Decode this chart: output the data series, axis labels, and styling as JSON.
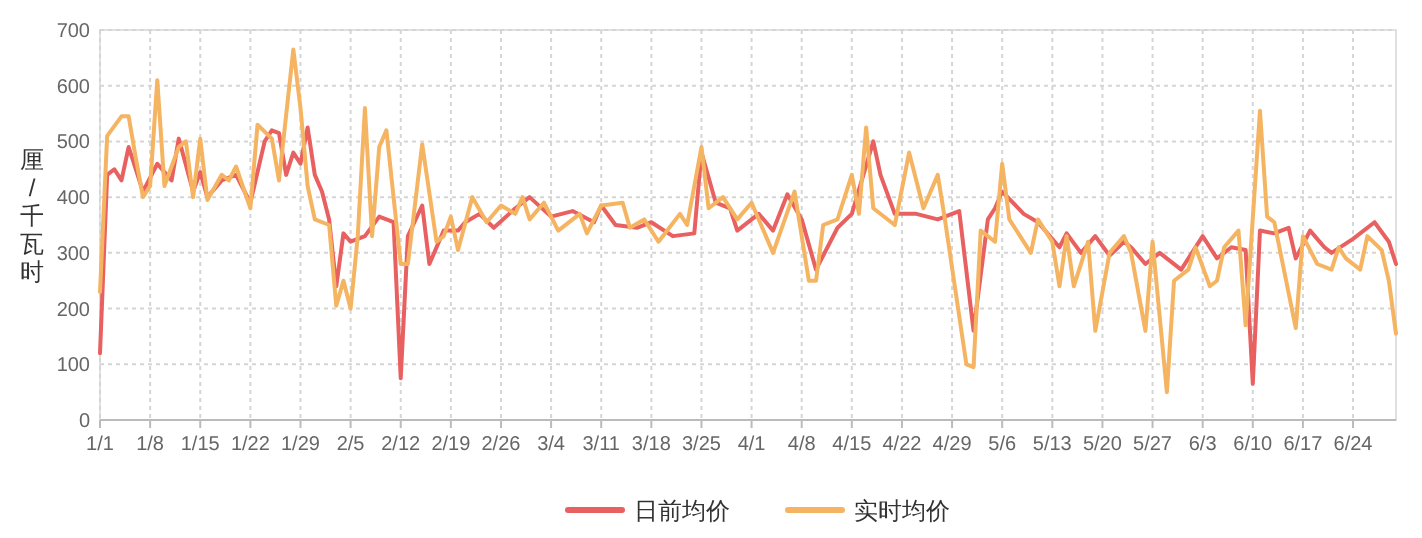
{
  "chart_data": {
    "type": "line",
    "ylabel": "厘/千瓦时",
    "xlim": [
      "--01-01",
      "--06-30"
    ],
    "xticks": [
      {
        "value": "--01-01",
        "label": "1/1"
      },
      {
        "value": "--01-08",
        "label": "1/8"
      },
      {
        "value": "--01-15",
        "label": "1/15"
      },
      {
        "value": "--01-22",
        "label": "1/22"
      },
      {
        "value": "--01-29",
        "label": "1/29"
      },
      {
        "value": "--02-05",
        "label": "2/5"
      },
      {
        "value": "--02-12",
        "label": "2/12"
      },
      {
        "value": "--02-19",
        "label": "2/19"
      },
      {
        "value": "--02-26",
        "label": "2/26"
      },
      {
        "value": "--03-04",
        "label": "3/4"
      },
      {
        "value": "--03-11",
        "label": "3/11"
      },
      {
        "value": "--03-18",
        "label": "3/18"
      },
      {
        "value": "--03-25",
        "label": "3/25"
      },
      {
        "value": "--04-01",
        "label": "4/1"
      },
      {
        "value": "--04-08",
        "label": "4/8"
      },
      {
        "value": "--04-15",
        "label": "4/15"
      },
      {
        "value": "--04-22",
        "label": "4/22"
      },
      {
        "value": "--04-29",
        "label": "4/29"
      },
      {
        "value": "--05-06",
        "label": "5/6"
      },
      {
        "value": "--05-13",
        "label": "5/13"
      },
      {
        "value": "--05-20",
        "label": "5/20"
      },
      {
        "value": "--05-27",
        "label": "5/27"
      },
      {
        "value": "--06-03",
        "label": "6/3"
      },
      {
        "value": "--06-10",
        "label": "6/10"
      },
      {
        "value": "--06-17",
        "label": "6/17"
      },
      {
        "value": "--06-24",
        "label": "6/24"
      }
    ],
    "ylim": [
      0,
      700
    ],
    "yticks": [
      0,
      100,
      200,
      300,
      400,
      500,
      600,
      700
    ],
    "grid": true,
    "legend": "bottom",
    "series": [
      {
        "name": "日前均价",
        "color": "#e8605f",
        "x": [
          "--01-01",
          "--01-02",
          "--01-03",
          "--01-04",
          "--01-05",
          "--01-07",
          "--01-09",
          "--01-11",
          "--01-12",
          "--01-14",
          "--01-15",
          "--01-16",
          "--01-18",
          "--01-20",
          "--01-22",
          "--01-24",
          "--01-25",
          "--01-26",
          "--01-27",
          "--01-28",
          "--01-29",
          "--01-30",
          "--01-31",
          "--02-01",
          "--02-02",
          "--02-03",
          "--02-04",
          "--02-05",
          "--02-07",
          "--02-09",
          "--02-11",
          "--02-12",
          "--02-13",
          "--02-15",
          "--02-16",
          "--02-18",
          "--02-20",
          "--02-21",
          "--02-23",
          "--02-25",
          "--02-28",
          "--03-01",
          "--03-04",
          "--03-07",
          "--03-10",
          "--03-11",
          "--03-13",
          "--03-16",
          "--03-18",
          "--03-21",
          "--03-24",
          "--03-25",
          "--03-27",
          "--03-29",
          "--03-30",
          "--04-02",
          "--04-04",
          "--04-06",
          "--04-08",
          "--04-10",
          "--04-13",
          "--04-15",
          "--04-18",
          "--04-19",
          "--04-21",
          "--04-24",
          "--04-27",
          "--04-30",
          "--05-02",
          "--05-04",
          "--05-05",
          "--05-06",
          "--05-09",
          "--05-11",
          "--05-14",
          "--05-15",
          "--05-17",
          "--05-19",
          "--05-21",
          "--05-23",
          "--05-24",
          "--05-26",
          "--05-28",
          "--05-31",
          "--06-03",
          "--06-05",
          "--06-07",
          "--06-09",
          "--06-10",
          "--06-11",
          "--06-13",
          "--06-15",
          "--06-16",
          "--06-18",
          "--06-20",
          "--06-21",
          "--06-24",
          "--06-27",
          "--06-29",
          "--06-30"
        ],
        "values": [
          120,
          440,
          450,
          430,
          490,
          410,
          460,
          430,
          505,
          410,
          445,
          400,
          430,
          440,
          390,
          500,
          520,
          515,
          440,
          480,
          460,
          525,
          440,
          410,
          360,
          240,
          335,
          320,
          330,
          365,
          355,
          75,
          330,
          385,
          280,
          340,
          340,
          355,
          370,
          345,
          380,
          400,
          365,
          375,
          355,
          385,
          350,
          345,
          355,
          330,
          335,
          480,
          390,
          380,
          340,
          370,
          340,
          405,
          360,
          270,
          345,
          370,
          500,
          440,
          370,
          370,
          360,
          375,
          160,
          360,
          380,
          410,
          370,
          355,
          310,
          335,
          300,
          330,
          295,
          320,
          310,
          280,
          300,
          270,
          330,
          290,
          310,
          305,
          65,
          340,
          335,
          345,
          290,
          340,
          310,
          300,
          325,
          355,
          320,
          280
        ]
      },
      {
        "name": "实时均价",
        "color": "#f5b461",
        "x": [
          "--01-01",
          "--01-02",
          "--01-04",
          "--01-05",
          "--01-06",
          "--01-07",
          "--01-08",
          "--01-09",
          "--01-10",
          "--01-12",
          "--01-13",
          "--01-14",
          "--01-15",
          "--01-16",
          "--01-18",
          "--01-19",
          "--01-20",
          "--01-22",
          "--01-23",
          "--01-25",
          "--01-26",
          "--01-28",
          "--01-29",
          "--01-30",
          "--01-31",
          "--02-02",
          "--02-03",
          "--02-04",
          "--02-05",
          "--02-06",
          "--02-07",
          "--02-08",
          "--02-09",
          "--02-10",
          "--02-12",
          "--02-13",
          "--02-15",
          "--02-17",
          "--02-18",
          "--02-19",
          "--02-20",
          "--02-22",
          "--02-24",
          "--02-26",
          "--02-28",
          "--02-29",
          "--03-01",
          "--03-03",
          "--03-05",
          "--03-08",
          "--03-09",
          "--03-11",
          "--03-14",
          "--03-15",
          "--03-17",
          "--03-19",
          "--03-22",
          "--03-23",
          "--03-25",
          "--03-26",
          "--03-28",
          "--03-30",
          "--04-01",
          "--04-03",
          "--04-04",
          "--04-07",
          "--04-09",
          "--04-10",
          "--04-11",
          "--04-13",
          "--04-15",
          "--04-16",
          "--04-17",
          "--04-18",
          "--04-21",
          "--04-23",
          "--04-25",
          "--04-27",
          "--04-28",
          "--05-01",
          "--05-02",
          "--05-03",
          "--05-05",
          "--05-06",
          "--05-07",
          "--05-10",
          "--05-11",
          "--05-13",
          "--05-14",
          "--05-15",
          "--05-16",
          "--05-18",
          "--05-19",
          "--05-21",
          "--05-23",
          "--05-24",
          "--05-26",
          "--05-27",
          "--05-29",
          "--05-30",
          "--06-01",
          "--06-02",
          "--06-04",
          "--06-05",
          "--06-06",
          "--06-08",
          "--06-09",
          "--06-11",
          "--06-12",
          "--06-13",
          "--06-16",
          "--06-17",
          "--06-19",
          "--06-21",
          "--06-22",
          "--06-23",
          "--06-25",
          "--06-26",
          "--06-28",
          "--06-29",
          "--06-30"
        ],
        "values": [
          230,
          510,
          545,
          545,
          470,
          400,
          420,
          610,
          420,
          490,
          500,
          400,
          505,
          395,
          440,
          430,
          455,
          380,
          530,
          505,
          430,
          665,
          560,
          420,
          360,
          350,
          205,
          250,
          200,
          330,
          560,
          330,
          490,
          520,
          280,
          280,
          495,
          320,
          330,
          365,
          305,
          400,
          355,
          385,
          370,
          400,
          360,
          390,
          340,
          370,
          335,
          385,
          390,
          345,
          360,
          320,
          370,
          350,
          490,
          380,
          400,
          360,
          390,
          330,
          300,
          410,
          250,
          250,
          350,
          360,
          440,
          370,
          525,
          380,
          350,
          480,
          380,
          440,
          360,
          100,
          95,
          340,
          320,
          460,
          360,
          300,
          360,
          320,
          240,
          330,
          240,
          320,
          160,
          300,
          330,
          300,
          160,
          320,
          50,
          250,
          270,
          310,
          240,
          250,
          310,
          340,
          170,
          555,
          365,
          355,
          165,
          330,
          280,
          270,
          310,
          290,
          270,
          330,
          305,
          250,
          155
        ]
      }
    ]
  }
}
